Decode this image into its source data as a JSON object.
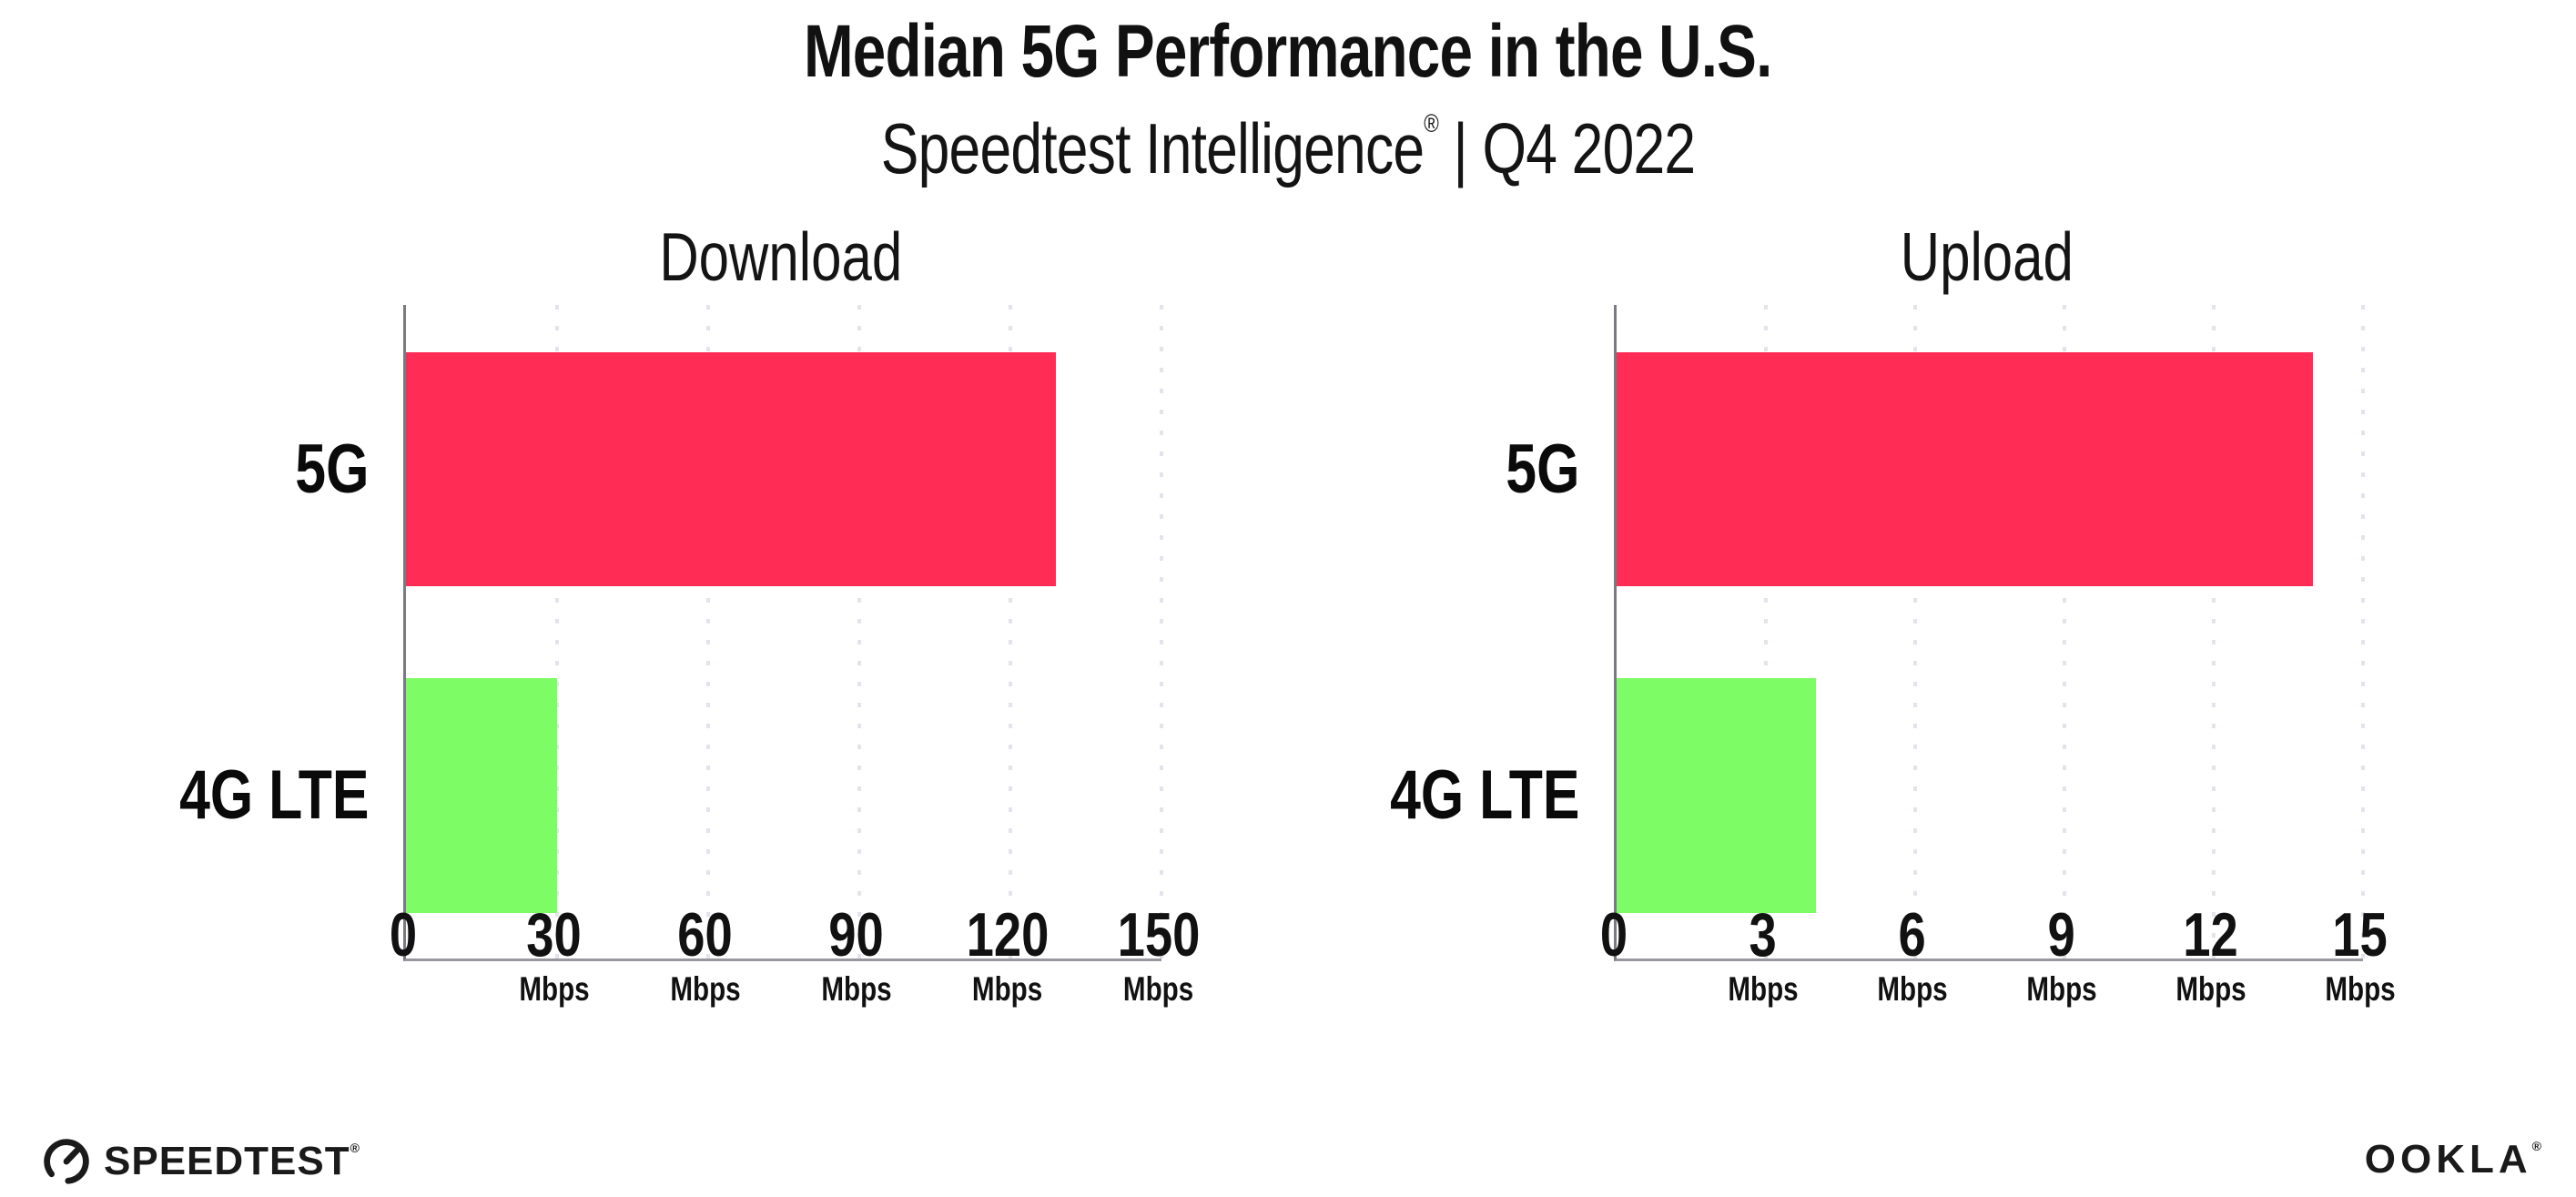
{
  "header": {
    "title": "Median 5G Performance in the U.S.",
    "subtitle_brand": "Speedtest Intelligence",
    "subtitle_reg": "®",
    "subtitle_rest": " | Q4 2022"
  },
  "chart_data": [
    {
      "type": "bar",
      "orientation": "horizontal",
      "title": "Download",
      "categories": [
        "5G",
        "4G LTE"
      ],
      "values": [
        129,
        30
      ],
      "unit": "Mbps",
      "xlim": [
        0,
        150
      ],
      "ticks": [
        0,
        30,
        60,
        90,
        120,
        150
      ],
      "grid": "dotted-vertical",
      "legend": "none"
    },
    {
      "type": "bar",
      "orientation": "horizontal",
      "title": "Upload",
      "categories": [
        "5G",
        "4G LTE"
      ],
      "values": [
        14,
        4
      ],
      "unit": "Mbps",
      "xlim": [
        0,
        15
      ],
      "ticks": [
        0,
        3,
        6,
        9,
        12,
        15
      ],
      "grid": "dotted-vertical",
      "legend": "none"
    }
  ],
  "colors": {
    "bar_5g": "#FF2D55",
    "bar_4g": "#7DFC66",
    "x_axis_line": "#97979F",
    "y_axis_line": "#7A7A82",
    "gridline": "#E3E3EC",
    "text": "#111111"
  },
  "footer": {
    "speedtest_label": "SPEEDTEST",
    "speedtest_reg": "®",
    "ookla_label": "OOKLA",
    "ookla_reg": "®"
  }
}
